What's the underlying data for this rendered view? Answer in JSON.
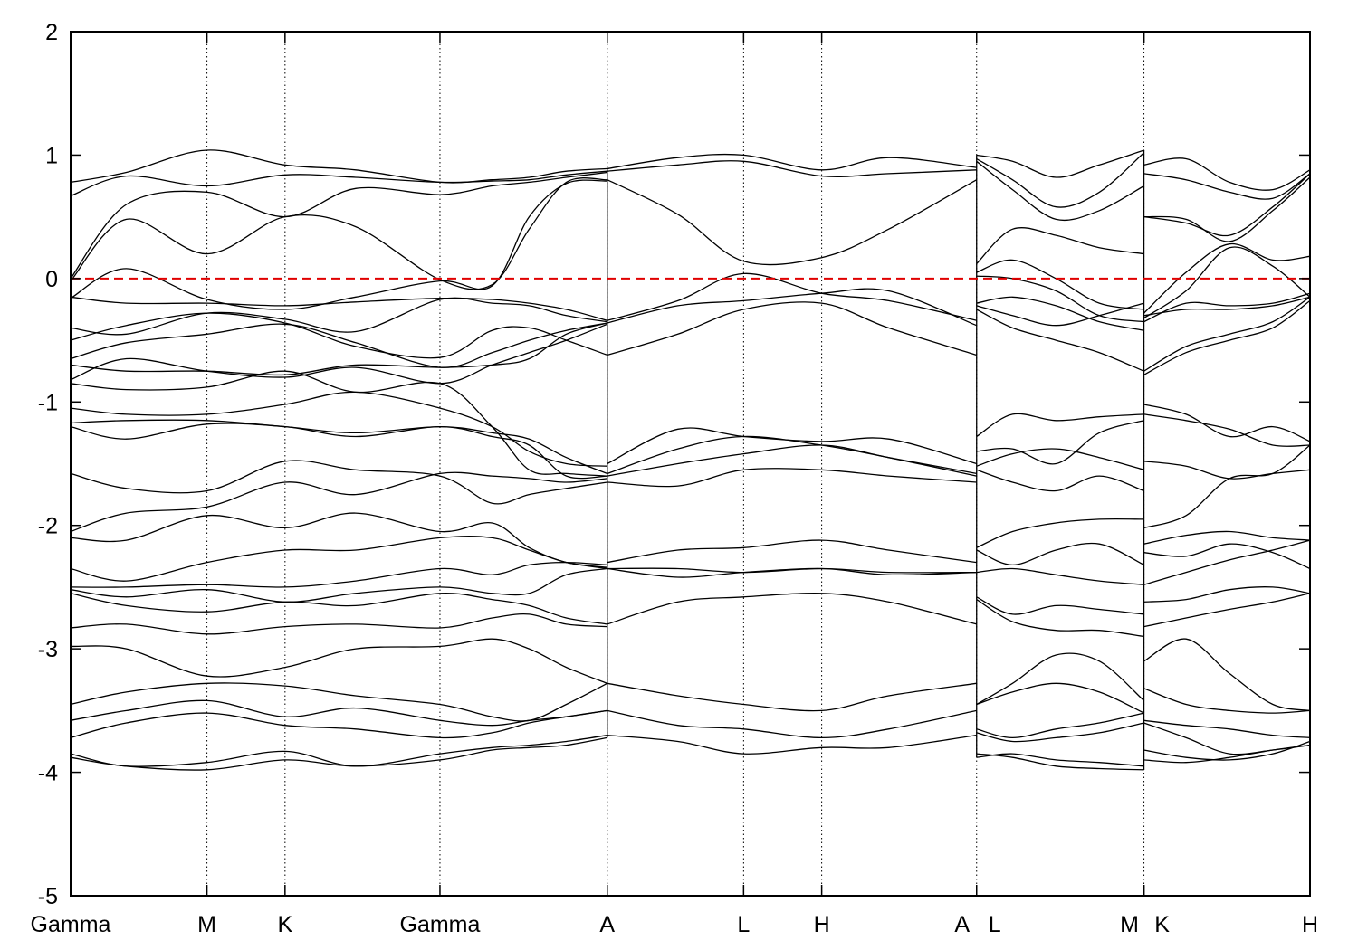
{
  "chart_data": {
    "type": "line",
    "title": "",
    "xlabel": "",
    "ylabel": "",
    "ylim": [
      -5,
      2
    ],
    "yticks": [
      -5,
      -4,
      -3,
      -2,
      -1,
      0,
      1,
      2
    ],
    "ytick_labels": [
      "-5",
      "-4",
      "-3",
      "-2",
      "-1",
      "0",
      "1",
      "2"
    ],
    "grid": "vertical dotted lines at high-symmetry points",
    "xlim": [
      0,
      10
    ],
    "high_symmetry_points": [
      {
        "label": "Gamma",
        "x": 0
      },
      {
        "label": "M",
        "x": 1.1
      },
      {
        "label": "K",
        "x": 1.73
      },
      {
        "label": "Gamma",
        "x": 2.98
      },
      {
        "label": "A",
        "x": 4.33
      },
      {
        "label": "L",
        "x": 5.43
      },
      {
        "label": "H",
        "x": 6.06
      },
      {
        "label": "A",
        "x": 7.31
      },
      {
        "label": "L",
        "x": 7.31
      },
      {
        "label": "M",
        "x": 8.66
      },
      {
        "label": "K",
        "x": 8.66
      },
      {
        "label": "H",
        "x": 10.0
      }
    ],
    "fermi_level": {
      "y": 0,
      "color": "#e00000",
      "style": "dashed"
    },
    "line_color": "#000000",
    "segments": [
      {
        "x_start": 0,
        "x_end": 4.33,
        "x": [
          0,
          0.45,
          1.1,
          1.73,
          2.3,
          2.98,
          3.4,
          3.7,
          4.0,
          4.33
        ],
        "bands": [
          [
            0.78,
            0.86,
            1.04,
            0.92,
            0.88,
            0.78,
            0.8,
            0.82,
            0.87,
            0.89
          ],
          [
            0.67,
            0.83,
            0.75,
            0.84,
            0.82,
            0.78,
            0.79,
            0.8,
            0.84,
            0.87
          ],
          [
            0.0,
            0.6,
            0.7,
            0.5,
            0.73,
            0.68,
            0.75,
            0.78,
            0.82,
            0.86
          ],
          [
            -0.02,
            0.48,
            0.2,
            0.5,
            0.42,
            -0.01,
            -0.05,
            0.4,
            0.78,
            0.8
          ],
          [
            -0.16,
            0.08,
            -0.17,
            -0.25,
            -0.15,
            -0.02,
            -0.06,
            0.5,
            0.77,
            0.79
          ],
          [
            -0.15,
            -0.2,
            -0.2,
            -0.22,
            -0.19,
            -0.16,
            -0.17,
            -0.2,
            -0.25,
            -0.34
          ],
          [
            -0.4,
            -0.45,
            -0.28,
            -0.33,
            -0.43,
            -0.17,
            -0.2,
            -0.22,
            -0.3,
            -0.35
          ],
          [
            -0.5,
            -0.38,
            -0.28,
            -0.36,
            -0.55,
            -0.64,
            -0.42,
            -0.4,
            -0.5,
            -0.62
          ],
          [
            -0.65,
            -0.52,
            -0.45,
            -0.37,
            -0.52,
            -0.72,
            -0.6,
            -0.5,
            -0.42,
            -0.36
          ],
          [
            -0.7,
            -0.75,
            -0.75,
            -0.78,
            -0.7,
            -0.72,
            -0.7,
            -0.65,
            -0.45,
            -0.36
          ],
          [
            -0.82,
            -0.65,
            -0.75,
            -0.8,
            -0.72,
            -0.85,
            -0.7,
            -0.6,
            -0.5,
            -0.37
          ],
          [
            -0.85,
            -0.9,
            -0.88,
            -0.75,
            -0.92,
            -0.85,
            -1.2,
            -1.55,
            -1.58,
            -1.6
          ],
          [
            -1.05,
            -1.1,
            -1.1,
            -1.02,
            -0.92,
            -1.05,
            -1.2,
            -1.4,
            -1.5,
            -1.52
          ],
          [
            -1.17,
            -1.15,
            -1.15,
            -1.2,
            -1.25,
            -1.2,
            -1.25,
            -1.3,
            -1.45,
            -1.58
          ],
          [
            -1.2,
            -1.3,
            -1.18,
            -1.2,
            -1.28,
            -1.2,
            -1.28,
            -1.35,
            -1.6,
            -1.6
          ],
          [
            -1.58,
            -1.7,
            -1.72,
            -1.48,
            -1.55,
            -1.6,
            -1.82,
            -1.75,
            -1.7,
            -1.65
          ],
          [
            -2.05,
            -1.9,
            -1.85,
            -1.65,
            -1.75,
            -1.58,
            -1.6,
            -1.62,
            -1.65,
            -1.62
          ],
          [
            -2.1,
            -2.12,
            -1.92,
            -2.02,
            -1.9,
            -2.05,
            -1.98,
            -2.18,
            -2.3,
            -2.34
          ],
          [
            -2.35,
            -2.45,
            -2.3,
            -2.2,
            -2.2,
            -2.1,
            -2.1,
            -2.2,
            -2.3,
            -2.35
          ],
          [
            -2.5,
            -2.5,
            -2.48,
            -2.5,
            -2.45,
            -2.35,
            -2.4,
            -2.32,
            -2.3,
            -2.32
          ],
          [
            -2.52,
            -2.58,
            -2.52,
            -2.62,
            -2.55,
            -2.5,
            -2.55,
            -2.55,
            -2.4,
            -2.35
          ],
          [
            -2.55,
            -2.65,
            -2.7,
            -2.62,
            -2.65,
            -2.55,
            -2.6,
            -2.65,
            -2.75,
            -2.8
          ],
          [
            -2.83,
            -2.8,
            -2.88,
            -2.82,
            -2.8,
            -2.83,
            -2.75,
            -2.72,
            -2.8,
            -2.82
          ],
          [
            -2.98,
            -3.0,
            -3.22,
            -3.15,
            -3.0,
            -2.98,
            -2.92,
            -3.0,
            -3.15,
            -3.28
          ],
          [
            -3.45,
            -3.35,
            -3.28,
            -3.3,
            -3.38,
            -3.45,
            -3.55,
            -3.58,
            -3.45,
            -3.28
          ],
          [
            -3.58,
            -3.5,
            -3.42,
            -3.55,
            -3.48,
            -3.58,
            -3.62,
            -3.58,
            -3.55,
            -3.5
          ],
          [
            -3.72,
            -3.6,
            -3.52,
            -3.62,
            -3.65,
            -3.72,
            -3.68,
            -3.6,
            -3.55,
            -3.5
          ],
          [
            -3.85,
            -3.95,
            -3.92,
            -3.83,
            -3.95,
            -3.85,
            -3.8,
            -3.78,
            -3.75,
            -3.7
          ],
          [
            -3.88,
            -3.95,
            -3.98,
            -3.9,
            -3.95,
            -3.9,
            -3.82,
            -3.8,
            -3.78,
            -3.72
          ]
        ]
      },
      {
        "x_start": 4.33,
        "x_end": 7.31,
        "x": [
          4.33,
          4.9,
          5.43,
          6.06,
          6.6,
          7.31
        ],
        "bands": [
          [
            0.89,
            0.98,
            1.0,
            0.88,
            0.98,
            0.9
          ],
          [
            0.87,
            0.92,
            0.95,
            0.83,
            0.85,
            0.88
          ],
          [
            0.8,
            0.52,
            0.14,
            0.17,
            0.4,
            0.8
          ],
          [
            -0.34,
            -0.18,
            0.04,
            -0.12,
            -0.18,
            -0.34
          ],
          [
            -0.36,
            -0.22,
            -0.18,
            -0.12,
            -0.1,
            -0.38
          ],
          [
            -0.62,
            -0.45,
            -0.25,
            -0.2,
            -0.4,
            -0.62
          ],
          [
            -1.5,
            -1.22,
            -1.28,
            -1.32,
            -1.3,
            -1.5
          ],
          [
            -1.58,
            -1.38,
            -1.28,
            -1.35,
            -1.45,
            -1.6
          ],
          [
            -1.6,
            -1.5,
            -1.42,
            -1.35,
            -1.45,
            -1.58
          ],
          [
            -1.65,
            -1.68,
            -1.55,
            -1.55,
            -1.6,
            -1.65
          ],
          [
            -2.3,
            -2.2,
            -2.18,
            -2.12,
            -2.2,
            -2.3
          ],
          [
            -2.35,
            -2.35,
            -2.38,
            -2.35,
            -2.38,
            -2.38
          ],
          [
            -2.35,
            -2.42,
            -2.38,
            -2.35,
            -2.4,
            -2.38
          ],
          [
            -2.8,
            -2.62,
            -2.58,
            -2.55,
            -2.62,
            -2.8
          ],
          [
            -3.28,
            -3.38,
            -3.45,
            -3.5,
            -3.38,
            -3.28
          ],
          [
            -3.5,
            -3.62,
            -3.65,
            -3.72,
            -3.65,
            -3.5
          ],
          [
            -3.7,
            -3.75,
            -3.85,
            -3.8,
            -3.8,
            -3.7
          ]
        ]
      },
      {
        "x_start": 7.31,
        "x_end": 8.66,
        "x": [
          7.31,
          7.6,
          7.95,
          8.3,
          8.66
        ],
        "bands": [
          [
            1.0,
            0.95,
            0.82,
            0.92,
            1.04
          ],
          [
            0.97,
            0.8,
            0.58,
            0.7,
            1.02
          ],
          [
            0.95,
            0.72,
            0.48,
            0.55,
            0.75
          ],
          [
            0.12,
            0.4,
            0.35,
            0.25,
            0.2
          ],
          [
            0.05,
            0.15,
            0.0,
            -0.2,
            -0.25
          ],
          [
            0.02,
            0.0,
            -0.1,
            -0.3,
            -0.35
          ],
          [
            -0.2,
            -0.15,
            -0.22,
            -0.35,
            -0.42
          ],
          [
            -0.22,
            -0.3,
            -0.38,
            -0.3,
            -0.2
          ],
          [
            -0.25,
            -0.4,
            -0.5,
            -0.6,
            -0.75
          ],
          [
            -1.28,
            -1.1,
            -1.15,
            -1.12,
            -1.1
          ],
          [
            -1.4,
            -1.38,
            -1.5,
            -1.25,
            -1.15
          ],
          [
            -1.52,
            -1.42,
            -1.38,
            -1.45,
            -1.55
          ],
          [
            -1.55,
            -1.65,
            -1.72,
            -1.6,
            -1.72
          ],
          [
            -2.18,
            -2.05,
            -1.98,
            -1.95,
            -1.95
          ],
          [
            -2.2,
            -2.32,
            -2.2,
            -2.15,
            -2.32
          ],
          [
            -2.38,
            -2.35,
            -2.4,
            -2.45,
            -2.48
          ],
          [
            -2.58,
            -2.72,
            -2.65,
            -2.68,
            -2.72
          ],
          [
            -2.6,
            -2.78,
            -2.85,
            -2.85,
            -2.9
          ],
          [
            -3.45,
            -3.28,
            -3.05,
            -3.1,
            -3.42
          ],
          [
            -3.45,
            -3.35,
            -3.28,
            -3.35,
            -3.52
          ],
          [
            -3.65,
            -3.72,
            -3.65,
            -3.6,
            -3.52
          ],
          [
            -3.68,
            -3.75,
            -3.72,
            -3.68,
            -3.6
          ],
          [
            -3.85,
            -3.88,
            -3.95,
            -3.97,
            -3.98
          ],
          [
            -3.88,
            -3.85,
            -3.9,
            -3.92,
            -3.95
          ]
        ]
      },
      {
        "x_start": 8.66,
        "x_end": 10.0,
        "x": [
          8.66,
          9.0,
          9.35,
          9.7,
          10.0
        ],
        "bands": [
          [
            0.92,
            0.97,
            0.78,
            0.72,
            0.88
          ],
          [
            0.85,
            0.8,
            0.7,
            0.65,
            0.85
          ],
          [
            0.5,
            0.45,
            0.35,
            0.58,
            0.85
          ],
          [
            0.5,
            0.48,
            0.3,
            0.55,
            0.82
          ],
          [
            -0.28,
            0.05,
            0.28,
            0.15,
            0.18
          ],
          [
            -0.32,
            -0.1,
            0.25,
            0.1,
            -0.15
          ],
          [
            -0.35,
            -0.2,
            -0.22,
            -0.2,
            -0.12
          ],
          [
            -0.3,
            -0.25,
            -0.25,
            -0.22,
            -0.15
          ],
          [
            -0.75,
            -0.55,
            -0.45,
            -0.35,
            -0.15
          ],
          [
            -0.78,
            -0.6,
            -0.5,
            -0.4,
            -0.18
          ],
          [
            -1.02,
            -1.1,
            -1.28,
            -1.2,
            -1.32
          ],
          [
            -1.1,
            -1.15,
            -1.22,
            -1.35,
            -1.35
          ],
          [
            -1.48,
            -1.52,
            -1.62,
            -1.58,
            -1.55
          ],
          [
            -2.02,
            -1.92,
            -1.62,
            -1.58,
            -1.35
          ],
          [
            -2.15,
            -2.08,
            -2.05,
            -2.1,
            -2.12
          ],
          [
            -2.22,
            -2.25,
            -2.15,
            -2.22,
            -2.35
          ],
          [
            -2.48,
            -2.38,
            -2.28,
            -2.2,
            -2.12
          ],
          [
            -2.62,
            -2.6,
            -2.52,
            -2.5,
            -2.55
          ],
          [
            -2.82,
            -2.75,
            -2.68,
            -2.62,
            -2.55
          ],
          [
            -3.1,
            -2.92,
            -3.2,
            -3.45,
            -3.5
          ],
          [
            -3.32,
            -3.45,
            -3.5,
            -3.52,
            -3.5
          ],
          [
            -3.58,
            -3.62,
            -3.65,
            -3.7,
            -3.72
          ],
          [
            -3.6,
            -3.72,
            -3.85,
            -3.82,
            -3.78
          ],
          [
            -3.82,
            -3.88,
            -3.9,
            -3.85,
            -3.75
          ],
          [
            -3.9,
            -3.92,
            -3.88,
            -3.82,
            -3.78
          ]
        ]
      }
    ]
  }
}
